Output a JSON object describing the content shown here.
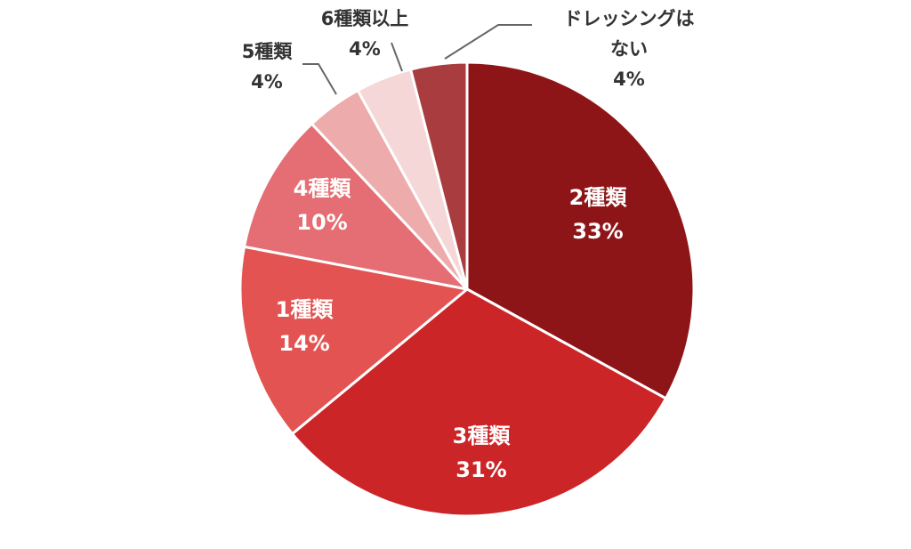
{
  "chart_data": {
    "type": "pie",
    "title": "",
    "start": "12 o'clock",
    "direction": "clockwise",
    "slices": [
      {
        "label": "2種類",
        "value": 33,
        "display": "33%",
        "color": "#8e1517"
      },
      {
        "label": "3種類",
        "value": 31,
        "display": "31%",
        "color": "#cc2528"
      },
      {
        "label": "1種類",
        "value": 14,
        "display": "14%",
        "color": "#e35352"
      },
      {
        "label": "4種類",
        "value": 10,
        "display": "10%",
        "color": "#e46e73"
      },
      {
        "label": "5種類",
        "value": 4,
        "display": "4%",
        "color": "#edabab"
      },
      {
        "label": "6種類以上",
        "value": 4,
        "display": "4%",
        "color": "#f6d7d8"
      },
      {
        "label": "ドレッシングは\nない",
        "value": 4,
        "display": "4%",
        "color": "#a83c3e"
      }
    ]
  }
}
